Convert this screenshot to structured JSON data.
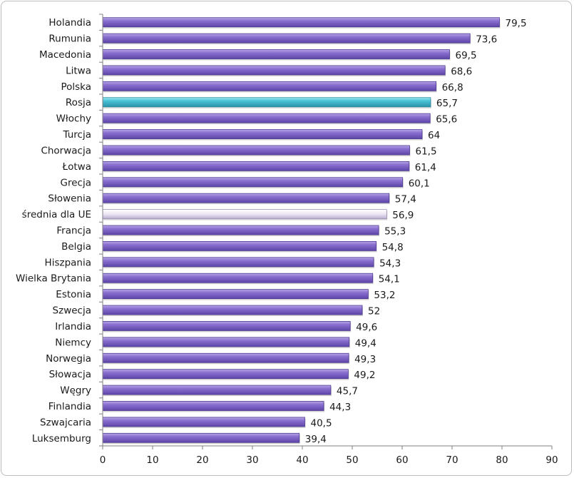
{
  "chart_data": {
    "type": "bar",
    "orientation": "horizontal",
    "title": "",
    "xlabel": "",
    "ylabel": "",
    "xlim": [
      0,
      90
    ],
    "ticks": [
      "0",
      "10",
      "20",
      "30",
      "40",
      "50",
      "60",
      "70",
      "80",
      "90"
    ],
    "grid": false,
    "legend": "none",
    "colors": {
      "default": "#8064c8",
      "highlight": "#4bc4d8",
      "average": "#ece6f4"
    },
    "categories": [
      "Holandia",
      "Rumunia",
      "Macedonia",
      "Litwa",
      "Polska",
      "Rosja",
      "Włochy",
      "Turcja",
      "Chorwacja",
      "Łotwa",
      "Grecja",
      "Słowenia",
      "średnia dla UE",
      "Francja",
      "Belgia",
      "Hiszpania",
      "Wielka Brytania",
      "Estonia",
      "Szwecja",
      "Irlandia",
      "Niemcy",
      "Norwegia",
      "Słowacja",
      "Węgry",
      "Finlandia",
      "Szwajcaria",
      "Luksemburg"
    ],
    "values": [
      79.5,
      73.6,
      69.5,
      68.6,
      66.8,
      65.7,
      65.6,
      64,
      61.5,
      61.4,
      60.1,
      57.4,
      56.9,
      55.3,
      54.8,
      54.3,
      54.1,
      53.2,
      52,
      49.6,
      49.4,
      49.3,
      49.2,
      45.7,
      44.3,
      40.5,
      39.4
    ],
    "value_labels": [
      "79,5",
      "73,6",
      "69,5",
      "68,6",
      "66,8",
      "65,7",
      "65,6",
      "64",
      "61,5",
      "61,4",
      "60,1",
      "57,4",
      "56,9",
      "55,3",
      "54,8",
      "54,3",
      "54,1",
      "53,2",
      "52",
      "49,6",
      "49,4",
      "49,3",
      "49,2",
      "45,7",
      "44,3",
      "40,5",
      "39,4"
    ],
    "bar_styles": [
      "default",
      "default",
      "default",
      "default",
      "default",
      "highlight",
      "default",
      "default",
      "default",
      "default",
      "default",
      "default",
      "average",
      "default",
      "default",
      "default",
      "default",
      "default",
      "default",
      "default",
      "default",
      "default",
      "default",
      "default",
      "default",
      "default",
      "default"
    ]
  }
}
